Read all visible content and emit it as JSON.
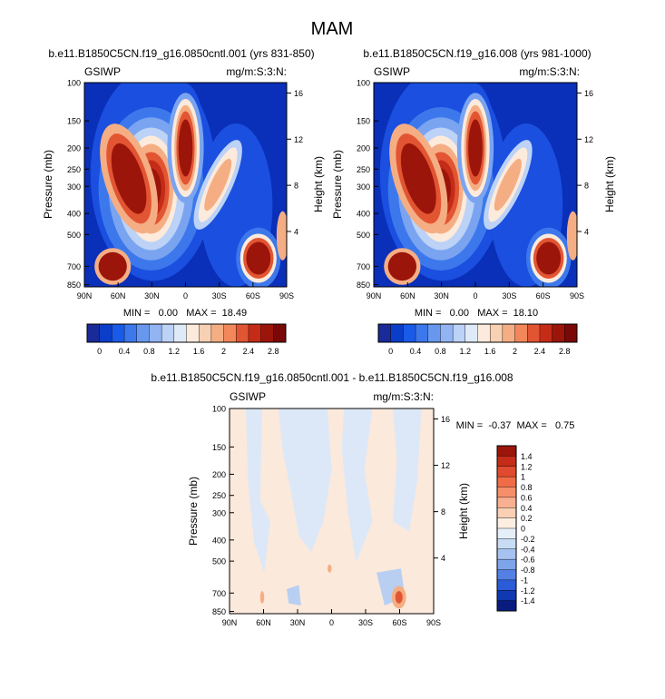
{
  "page_title": "MAM",
  "chart_data": [
    {
      "type": "heatmap",
      "title": "b.e11.B1850C5CN.f19_g16.0850cntl.001 (yrs 831-850)",
      "left_string": "GSIWP",
      "right_string": "mg/m:S:3:N:",
      "ylabel": "Pressure (mb)",
      "ylabel_right": "Height (km)",
      "x_ticks": [
        "90N",
        "60N",
        "30N",
        "0",
        "30S",
        "60S",
        "90S"
      ],
      "y_ticks": [
        "100",
        "150",
        "200",
        "250",
        "300",
        "400",
        "500",
        "700",
        "850"
      ],
      "height_ticks": [
        "16",
        "12",
        "8",
        "4"
      ],
      "min_max_text": "MIN =   0.00   MAX =  18.49",
      "colorbar": {
        "labels": [
          "0",
          "0.4",
          "0.8",
          "1.2",
          "1.6",
          "2",
          "2.4",
          "2.8"
        ],
        "colors": [
          "#1a2a99",
          "#0a3ec8",
          "#1a5ae8",
          "#3c78ec",
          "#6898ee",
          "#92b4f2",
          "#bcd2f6",
          "#dfeaf8",
          "#fcebdc",
          "#f8d0b3",
          "#f5ae84",
          "#f1875b",
          "#e25533",
          "#c42c18",
          "#9c150a",
          "#7a0806"
        ]
      }
    },
    {
      "type": "heatmap",
      "title": "b.e11.B1850C5CN.f19_g16.008 (yrs 981-1000)",
      "left_string": "GSIWP",
      "right_string": "mg/m:S:3:N:",
      "ylabel": "Pressure (mb)",
      "ylabel_right": "Height (km)",
      "x_ticks": [
        "90N",
        "60N",
        "30N",
        "0",
        "30S",
        "60S",
        "90S"
      ],
      "y_ticks": [
        "100",
        "150",
        "200",
        "250",
        "300",
        "400",
        "500",
        "700",
        "850"
      ],
      "height_ticks": [
        "16",
        "12",
        "8",
        "4"
      ],
      "min_max_text": "MIN =   0.00   MAX =  18.10",
      "colorbar": {
        "labels": [
          "0",
          "0.4",
          "0.8",
          "1.2",
          "1.6",
          "2",
          "2.4",
          "2.8"
        ],
        "colors": [
          "#1a2a99",
          "#0a3ec8",
          "#1a5ae8",
          "#3c78ec",
          "#6898ee",
          "#92b4f2",
          "#bcd2f6",
          "#dfeaf8",
          "#fcebdc",
          "#f8d0b3",
          "#f5ae84",
          "#f1875b",
          "#e25533",
          "#c42c18",
          "#9c150a",
          "#7a0806"
        ]
      }
    },
    {
      "type": "heatmap",
      "title": "b.e11.B1850C5CN.f19_g16.0850cntl.001 - b.e11.B1850C5CN.f19_g16.008",
      "left_string": "GSIWP",
      "right_string": "mg/m:S:3:N:",
      "ylabel": "Pressure (mb)",
      "ylabel_right": "Height (km)",
      "x_ticks": [
        "90N",
        "60N",
        "30N",
        "0",
        "30S",
        "60S",
        "90S"
      ],
      "y_ticks": [
        "100",
        "150",
        "200",
        "250",
        "300",
        "400",
        "500",
        "700",
        "850"
      ],
      "height_ticks": [
        "16",
        "12",
        "8",
        "4"
      ],
      "min_max_text": "MIN =  -0.37  MAX =   0.75",
      "colorbar": {
        "labels": [
          "1.4",
          "1.2",
          "1",
          "0.8",
          "0.6",
          "0.4",
          "0.2",
          "0",
          "-0.2",
          "-0.4",
          "-0.6",
          "-0.8",
          "-1",
          "-1.2",
          "-1.4"
        ],
        "colors": [
          "#9c150a",
          "#c42c18",
          "#e04a2e",
          "#f06c48",
          "#f58f6a",
          "#f8b090",
          "#fad0b5",
          "#fdeee2",
          "#e6eefa",
          "#c8dcf6",
          "#a6c2f0",
          "#7ea4ea",
          "#5380e4",
          "#2a5cd8",
          "#1038b0",
          "#081c80"
        ]
      }
    }
  ]
}
